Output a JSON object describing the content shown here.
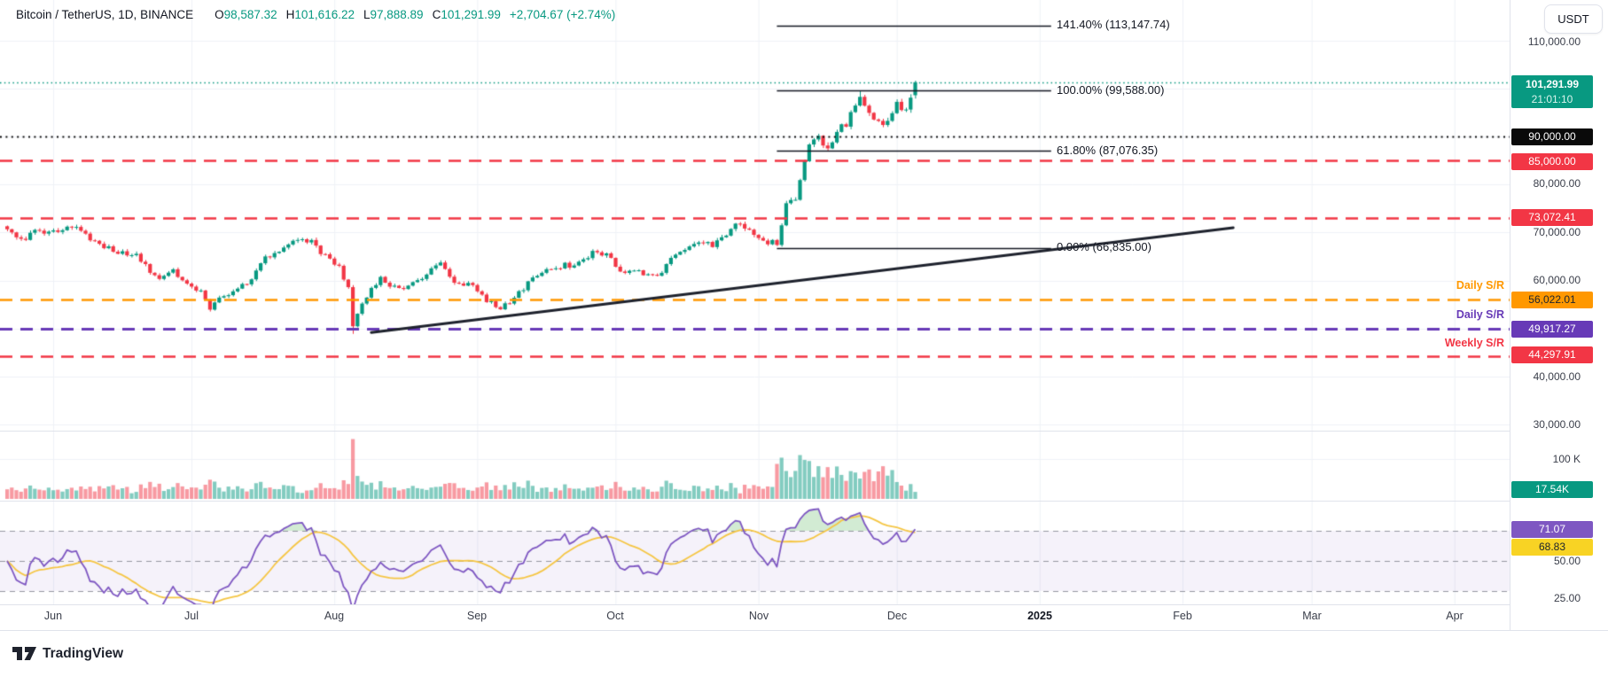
{
  "header": {
    "symbol": "Bitcoin / TetherUS, 1D, BINANCE",
    "o_label": "O",
    "o_value": "98,587.32",
    "h_label": "H",
    "h_value": "101,616.22",
    "l_label": "L",
    "l_value": "97,888.89",
    "c_label": "C",
    "c_value": "101,291.99",
    "change": "+2,704.67 (+2.74%)"
  },
  "currency_button_label": "USDT",
  "price_axis": {
    "labels": [
      {
        "text": "110,000.00",
        "price": 110000
      },
      {
        "text": "80,000.00",
        "price": 80000
      },
      {
        "text": "70,000.00",
        "price": 70000
      },
      {
        "text": "60,000.00",
        "price": 60000
      },
      {
        "text": "40,000.00",
        "price": 40000
      },
      {
        "text": "30,000.00",
        "price": 30000
      }
    ],
    "last_price_badge": {
      "price": "101,291.99",
      "countdown": "21:01:10",
      "color": "#089981"
    },
    "level_badges": [
      {
        "text": "90,000.00",
        "color": "#000000"
      },
      {
        "text": "85,000.00",
        "color": "#F23645"
      },
      {
        "text": "73,072.41",
        "color": "#F23645"
      },
      {
        "text": "56,022.01",
        "color": "#FF9800"
      },
      {
        "text": "49,917.27",
        "color": "#673AB7"
      },
      {
        "text": "44,297.91",
        "color": "#F23645"
      }
    ]
  },
  "sr_labels": {
    "daily_orange": "Daily S/R",
    "daily_purple": "Daily S/R",
    "weekly_red": "Weekly S/R"
  },
  "fib_labels": [
    {
      "text": "141.40% (113,147.74)"
    },
    {
      "text": "100.00% (99,588.00)"
    },
    {
      "text": "61.80% (87,076.35)"
    },
    {
      "text": "0.00% (66,835.00)"
    }
  ],
  "volume_axis": {
    "gridline_label": "100 K",
    "last_volume_badge": "17.54K"
  },
  "rsi_axis": {
    "rsi_badge": "71.07",
    "ma_badge": "68.83",
    "mid_label": "50.00",
    "low_label": "25.00"
  },
  "logo_text": "TradingView",
  "chart_data": {
    "type": "candlestick",
    "title": "Bitcoin / TetherUS, 1D, BINANCE",
    "last_ohlc": {
      "open": 98587.32,
      "high": 101616.22,
      "low": 97888.89,
      "close": 101291.99,
      "change": 2704.67,
      "change_pct": 2.74
    },
    "last_countdown": "21:01:10",
    "y_ticks": [
      110000,
      100000,
      90000,
      80000,
      70000,
      60000,
      50000,
      40000,
      30000
    ],
    "price_axis_range": {
      "top": 118400,
      "bottom": 28700
    },
    "levels": [
      {
        "price": 101291.99,
        "style": "dotted",
        "color": "#089981",
        "width": 1.5,
        "name": "last-close"
      },
      {
        "price": 90000.0,
        "style": "dotted",
        "color": "#111111",
        "width": 2,
        "name": "round-level"
      },
      {
        "price": 85000.0,
        "style": "dashed",
        "color": "#F23645",
        "width": 2.5,
        "name": "resistance"
      },
      {
        "price": 73072.41,
        "style": "dashed",
        "color": "#F23645",
        "width": 2.5,
        "name": "resistance"
      },
      {
        "price": 56022.01,
        "style": "dashed",
        "color": "#FF9800",
        "width": 2.5,
        "name": "Daily S/R"
      },
      {
        "price": 49917.27,
        "style": "dashed",
        "color": "#673AB7",
        "width": 3,
        "name": "Daily S/R"
      },
      {
        "price": 44297.91,
        "style": "dashed",
        "color": "#F23645",
        "width": 2.5,
        "name": "Weekly S/R"
      }
    ],
    "fib_retracement": {
      "levels": [
        {
          "pct": 141.4,
          "price": 113147.74
        },
        {
          "pct": 100.0,
          "price": 99588.0
        },
        {
          "pct": 61.8,
          "price": 87076.35
        },
        {
          "pct": 0.0,
          "price": 66835.0
        }
      ],
      "span_days": [
        167,
        226.5
      ]
    },
    "trendline": {
      "day1": 79,
      "price1": 49200,
      "day2": 266,
      "price2": 71000
    },
    "months": [
      {
        "label": "Jun",
        "day": 10
      },
      {
        "label": "Jul",
        "day": 40
      },
      {
        "label": "Aug",
        "day": 71
      },
      {
        "label": "Sep",
        "day": 102
      },
      {
        "label": "Oct",
        "day": 132
      },
      {
        "label": "Nov",
        "day": 163
      },
      {
        "label": "Dec",
        "day": 193
      },
      {
        "label": "2025",
        "day": 224
      },
      {
        "label": "Feb",
        "day": 255
      },
      {
        "label": "Mar",
        "day": 283
      },
      {
        "label": "Apr",
        "day": 314
      }
    ],
    "num_days": 198,
    "price_anchors": [
      [
        0,
        71300
      ],
      [
        3,
        68400
      ],
      [
        6,
        70200
      ],
      [
        10,
        70600
      ],
      [
        15,
        71200
      ],
      [
        20,
        67700
      ],
      [
        24,
        66300
      ],
      [
        28,
        64900
      ],
      [
        33,
        60300
      ],
      [
        36,
        61800
      ],
      [
        42,
        57300
      ],
      [
        44,
        54200
      ],
      [
        47,
        56800
      ],
      [
        52,
        59300
      ],
      [
        55,
        63800
      ],
      [
        61,
        67900
      ],
      [
        66,
        68200
      ],
      [
        68,
        66100
      ],
      [
        72,
        62700
      ],
      [
        74,
        58000
      ],
      [
        75,
        50500
      ],
      [
        78,
        56800
      ],
      [
        81,
        60900
      ],
      [
        84,
        58400
      ],
      [
        88,
        59200
      ],
      [
        94,
        64100
      ],
      [
        97,
        59300
      ],
      [
        101,
        58900
      ],
      [
        104,
        55800
      ],
      [
        107,
        53700
      ],
      [
        111,
        57600
      ],
      [
        114,
        60200
      ],
      [
        119,
        63200
      ],
      [
        123,
        63000
      ],
      [
        127,
        65700
      ],
      [
        131,
        65400
      ],
      [
        133,
        61600
      ],
      [
        136,
        62300
      ],
      [
        141,
        60700
      ],
      [
        145,
        66100
      ],
      [
        150,
        68400
      ],
      [
        153,
        67000
      ],
      [
        159,
        72300
      ],
      [
        162,
        69400
      ],
      [
        164,
        68600
      ],
      [
        167,
        67600
      ],
      [
        169,
        75900
      ],
      [
        171,
        76600
      ],
      [
        174,
        88700
      ],
      [
        176,
        90400
      ],
      [
        178,
        87300
      ],
      [
        180,
        90800
      ],
      [
        182,
        92300
      ],
      [
        185,
        98900
      ],
      [
        188,
        93100
      ],
      [
        190,
        91900
      ],
      [
        193,
        97200
      ],
      [
        195,
        95900
      ],
      [
        196,
        98700
      ],
      [
        197,
        101292
      ]
    ],
    "candle_overrides": {
      "75": {
        "low": 48900
      },
      "185": {
        "high": 99588
      },
      "197": {
        "open": 98587.32,
        "high": 101616.22,
        "low": 97888.89,
        "close": 101291.99
      }
    },
    "volume": {
      "unit": "K",
      "axis_gridline": 100,
      "last": 17.54,
      "spikes": {
        "33": 38,
        "75": 150,
        "169": 70,
        "174": 95,
        "176": 82,
        "197": 17.54
      },
      "elevated_range_days": [
        167,
        192
      ],
      "up_color": "rgba(8,153,129,0.5)",
      "down_color": "rgba(242,54,69,0.5)"
    },
    "rsi": {
      "period": 14,
      "ma_period": 14,
      "last_rsi": 71.07,
      "last_ma": 68.83,
      "overbought": 70,
      "mid": 50,
      "oversold": 30,
      "low_tick": 25,
      "line_color": "#7E57C2",
      "ma_color": "#F5C644",
      "band_fill": "rgba(126,87,194,0.08)",
      "overbought_fill": "rgba(76,175,80,0.25)"
    },
    "colors": {
      "up": "#089981",
      "down": "#F23645",
      "grid": "#eff2f7"
    }
  }
}
